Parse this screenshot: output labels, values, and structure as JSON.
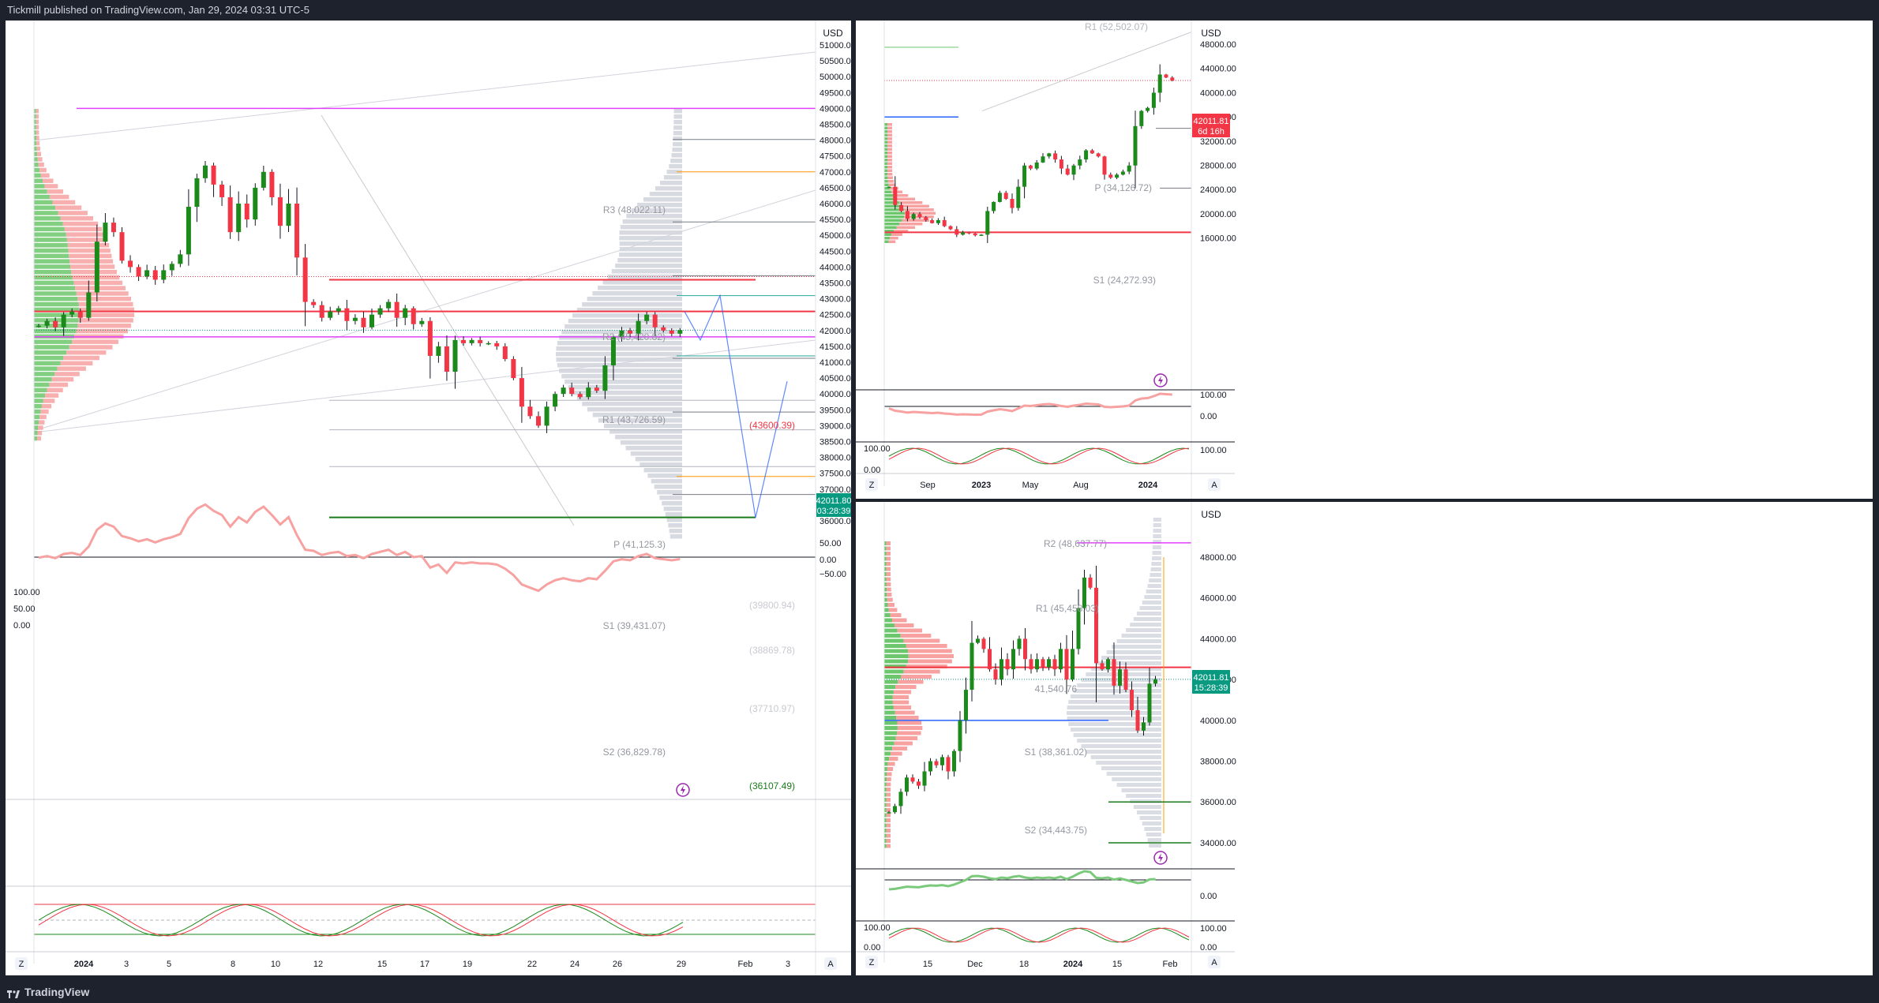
{
  "header": {
    "publisher_text": "Tickmill published on TradingView.com, Jan 29, 2024 03:31 UTC-5"
  },
  "footer": {
    "brand": "TradingView"
  },
  "charts": {
    "main": {
      "currency": "USD",
      "y_ticks": [
        "51000.00",
        "50500.00",
        "50000.00",
        "49500.00",
        "49000.00",
        "48500.00",
        "48000.00",
        "47500.00",
        "47000.00",
        "46500.00",
        "46000.00",
        "45500.00",
        "45000.00",
        "44500.00",
        "44000.00",
        "43500.00",
        "43000.00",
        "42500.00",
        "42000.00",
        "41500.00",
        "41000.00",
        "40500.00",
        "40000.00",
        "39500.00",
        "39000.00",
        "38500.00",
        "38000.00",
        "37500.00",
        "37000.00",
        "36500.00",
        "36000.00"
      ],
      "x_ticks": [
        "2024",
        "3",
        "5",
        "8",
        "10",
        "12",
        "15",
        "17",
        "19",
        "22",
        "24",
        "26",
        "29",
        "Feb",
        "3"
      ],
      "price_label": "42011.80",
      "countdown": "03:28:39",
      "levels": {
        "r3": "R3 (48,022.11)",
        "r2": "R2 (45,420.82)",
        "r1": "R1 (43,726.59)",
        "p": "P (41,125.3)",
        "s1": "S1 (39,431.07)",
        "s2": "S2 (36,829.78)",
        "l39800": "(39800.94)",
        "l38869": "(38869.78)",
        "l37710": "(37710.97)"
      },
      "red_level_label": "(43600.39)",
      "green_level_label": "(36107.49)",
      "osc1_ticks": [
        "50.00",
        "0.00",
        "−50.00"
      ],
      "osc2_ticks": [
        "100.00",
        "50.00",
        "0.00"
      ],
      "corner_left": "Z",
      "corner_right": "A"
    },
    "weekly": {
      "currency": "USD",
      "y_ticks": [
        "48000.00",
        "44000.00",
        "40000.00",
        "36000.00",
        "32000.00",
        "28000.00",
        "24000.00",
        "20000.00",
        "16000.00"
      ],
      "x_ticks": [
        "Sep",
        "2023",
        "May",
        "Aug",
        "2024"
      ],
      "price_label": "42011.81",
      "countdown": "6d 16h",
      "levels": {
        "r1": "R1 (52,502.07)",
        "p": "P (34,126.72)",
        "s1": "S1 (24,272.93)"
      },
      "osc1_ticks": [
        "100.00",
        "0.00"
      ],
      "osc2_ticks": [
        "100.00",
        "100.00",
        "0.00"
      ],
      "corner_left": "Z",
      "corner_right": "A"
    },
    "daily": {
      "currency": "USD",
      "y_ticks": [
        "48000.00",
        "46000.00",
        "44000.00",
        "42000.00",
        "40000.00",
        "38000.00",
        "36000.00",
        "34000.00"
      ],
      "x_ticks": [
        "15",
        "Dec",
        "18",
        "2024",
        "15",
        "Feb"
      ],
      "price_label": "42011.81",
      "countdown": "15:28:39",
      "levels": {
        "r2": "R2 (48,637.77)",
        "r1": "R1 (45,458.03)",
        "p": "41,540.76",
        "s1": "S1 (38,361.02)",
        "s2": "S2 (34,443.75)"
      },
      "osc1_ticks": [
        "0.00"
      ],
      "osc2_ticks": [
        "100.00",
        "0.00"
      ],
      "corner_left": "Z",
      "corner_right": "A"
    }
  },
  "chart_data": [
    {
      "type": "candlestick",
      "title": "",
      "timeframe_hint": "hourly",
      "ylim": [
        36000,
        51000
      ],
      "currency": "USD",
      "close_series_approx": [
        42150,
        42300,
        42100,
        42500,
        42600,
        42400,
        43200,
        44800,
        45400,
        45100,
        44200,
        44000,
        43700,
        43900,
        43600,
        43900,
        44100,
        44400,
        45900,
        46800,
        47200,
        46600,
        46200,
        45100,
        46000,
        45500,
        46500,
        47000,
        46200,
        45300,
        46000,
        44300,
        42900,
        42800,
        42400,
        42600,
        42700,
        42300,
        42400,
        42100,
        42500,
        42700,
        42900,
        42400,
        42700,
        42200,
        42300,
        41200,
        41500,
        40700,
        41700,
        41600,
        41700,
        41600,
        41600,
        41500,
        41100,
        40500,
        39600,
        39300,
        39000,
        39600,
        40000,
        40200,
        40000,
        39900,
        40200,
        40100,
        40900,
        41800,
        42000,
        41900,
        42300,
        42500,
        42100,
        42000,
        41900,
        42011.8
      ],
      "horizontal_levels": [
        {
          "label": "R3 (48,022.11)",
          "value": 48022.11
        },
        {
          "label": "R2 (45,420.82)",
          "value": 45420.82
        },
        {
          "label": "R1 (43,726.59)",
          "value": 43726.59
        },
        {
          "label": "P (41,125.3)",
          "value": 41125.3
        },
        {
          "label": "S1 (39,431.07)",
          "value": 39431.07
        },
        {
          "label": "S2 (36,829.78)",
          "value": 36829.78
        },
        {
          "label": "(43600.39)",
          "value": 43600.39
        },
        {
          "label": "(36107.49)",
          "value": 36107.49
        },
        {
          "label": "(39800.94)",
          "value": 39800.94
        },
        {
          "label": "(38869.78)",
          "value": 38869.78
        },
        {
          "label": "(37710.97)",
          "value": 37710.97
        }
      ],
      "projection_path": [
        42600,
        41700,
        43100,
        36100,
        40400
      ]
    },
    {
      "type": "candlestick",
      "timeframe_hint": "weekly",
      "ylim": [
        14000,
        50000
      ],
      "currency": "USD",
      "close_series_approx": [
        24500,
        21500,
        20500,
        19200,
        20000,
        19500,
        19000,
        18500,
        19000,
        18000,
        17500,
        16600,
        17000,
        16800,
        16500,
        16600,
        20500,
        22000,
        23500,
        22500,
        21000,
        24500,
        28000,
        27500,
        28500,
        29500,
        30000,
        29000,
        27500,
        26500,
        28000,
        29000,
        30500,
        30000,
        29500,
        26500,
        26000,
        26500,
        27000,
        28000,
        34500,
        37000,
        37500,
        40000,
        43000,
        42500,
        42011.81
      ],
      "horizontal_levels": [
        {
          "label": "R1 (52,502.07)",
          "value": 52502.07
        },
        {
          "label": "P (34,126.72)",
          "value": 34126.72
        },
        {
          "label": "S1 (24,272.93)",
          "value": 24272.93
        }
      ]
    },
    {
      "type": "candlestick",
      "timeframe_hint": "daily",
      "ylim": [
        33000,
        50000
      ],
      "currency": "USD",
      "close_series_approx": [
        35500,
        35800,
        36500,
        37200,
        37000,
        36800,
        37500,
        38000,
        37800,
        38200,
        37500,
        38500,
        40000,
        41500,
        43800,
        44000,
        43500,
        42500,
        42000,
        43000,
        42500,
        43500,
        44000,
        43000,
        42500,
        43000,
        42600,
        43000,
        42500,
        43500,
        42000,
        43500,
        45500,
        47000,
        46500,
        42800,
        42500,
        43000,
        41700,
        42500,
        41500,
        40500,
        39500,
        39900,
        41800,
        42011.81
      ],
      "horizontal_levels": [
        {
          "label": "R2 (48,637.77)",
          "value": 48637.77
        },
        {
          "label": "R1 (45,458.03)",
          "value": 45458.03
        },
        {
          "label": "41,540.76",
          "value": 41540.76
        },
        {
          "label": "S1 (38,361.02)",
          "value": 38361.02
        },
        {
          "label": "S2 (34,443.75)",
          "value": 34443.75
        }
      ]
    }
  ]
}
